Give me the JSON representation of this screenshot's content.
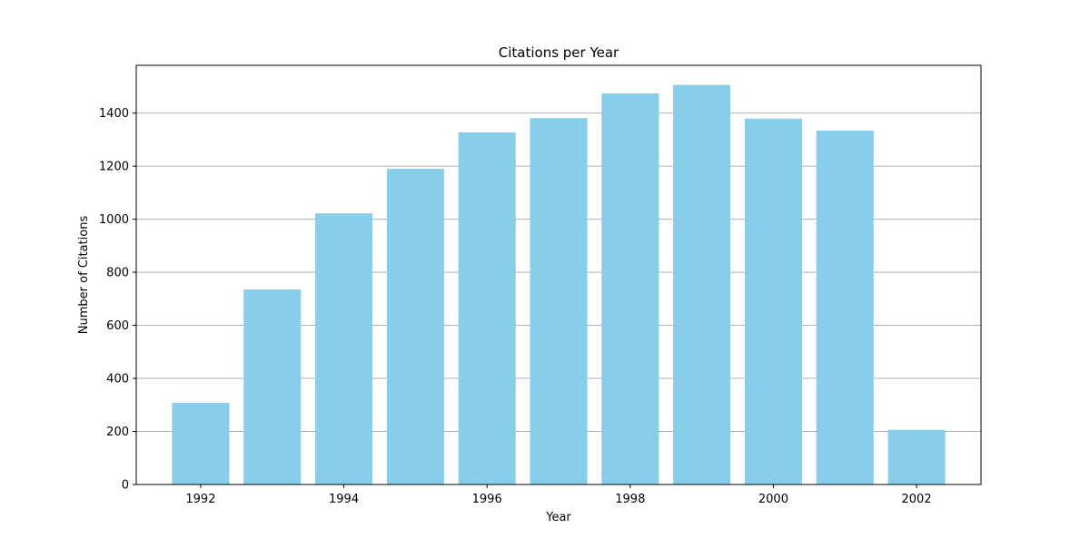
{
  "chart_data": {
    "type": "bar",
    "title": "Citations per Year",
    "xlabel": "Year",
    "ylabel": "Number of Citations",
    "x": [
      1992,
      1993,
      1994,
      1995,
      1996,
      1997,
      1998,
      1999,
      2000,
      2001,
      2002
    ],
    "values": [
      308,
      735,
      1022,
      1190,
      1327,
      1381,
      1474,
      1506,
      1379,
      1334,
      206
    ],
    "xticks": [
      1992,
      1994,
      1996,
      1998,
      2000,
      2002
    ],
    "yticks": [
      0,
      200,
      400,
      600,
      800,
      1000,
      1200,
      1400
    ],
    "xlim": [
      1991.1,
      2002.9
    ],
    "ylim": [
      0,
      1580
    ],
    "grid": "horizontal",
    "bar_color": "#87ceeb",
    "grid_color": "#b0b0b0",
    "legend": "none"
  }
}
